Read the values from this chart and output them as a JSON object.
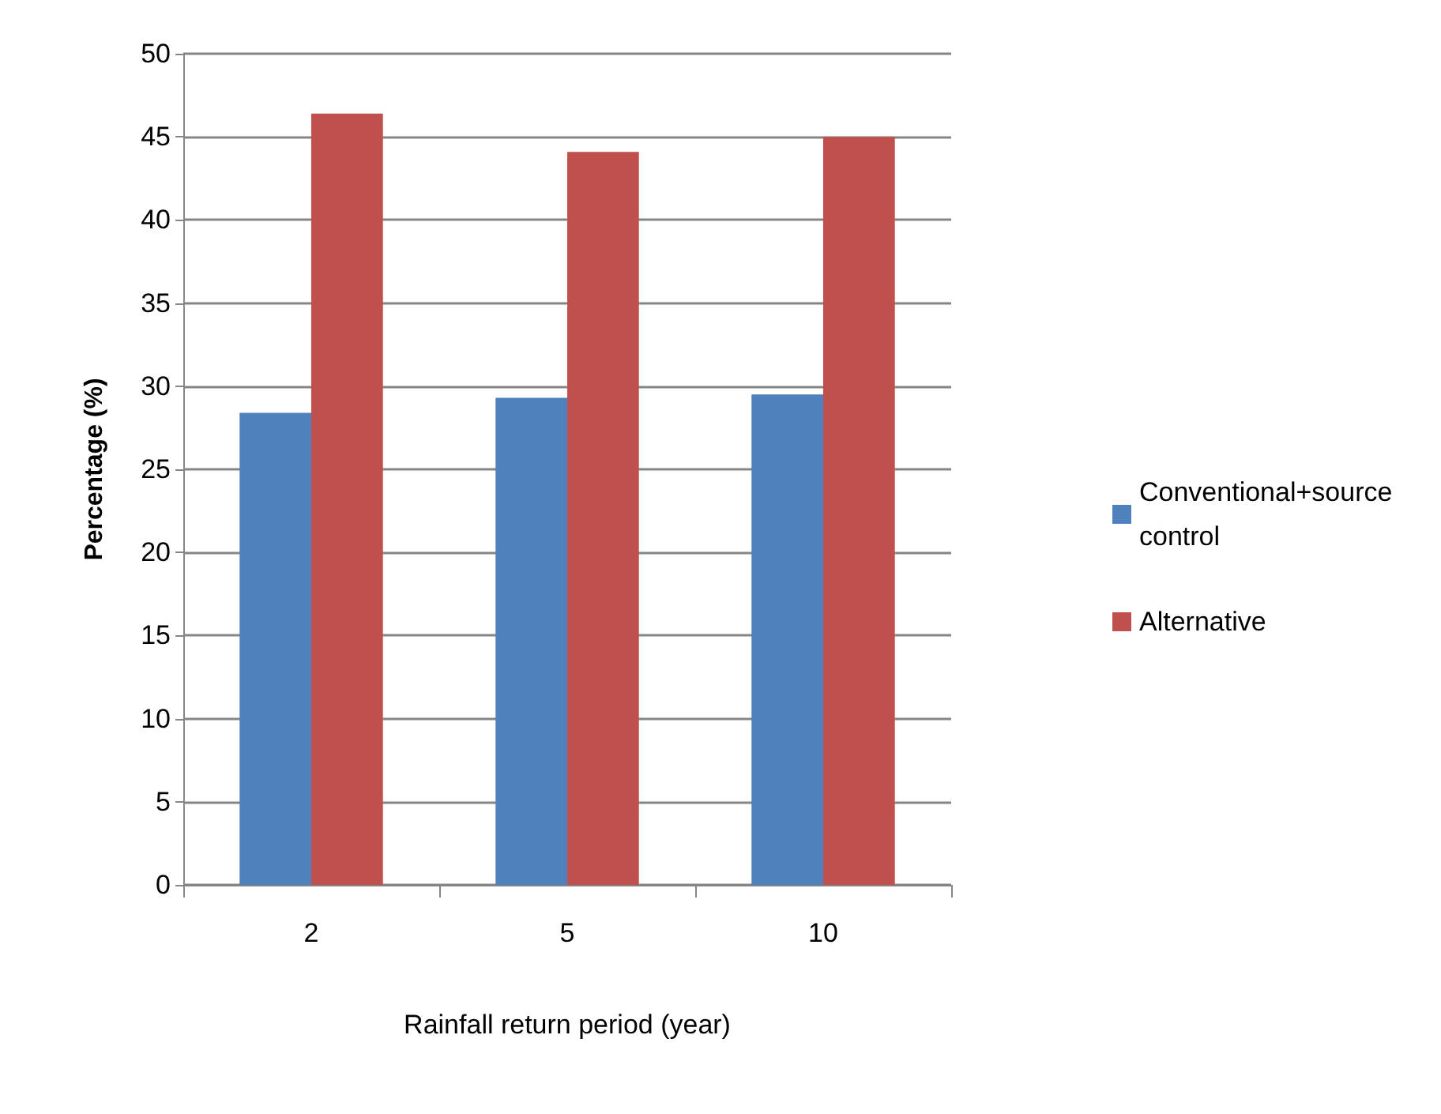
{
  "chart_data": {
    "type": "bar",
    "xlabel": "Rainfall return period (year)",
    "ylabel": "Percentage (%)",
    "categories": [
      "2",
      "5",
      "10"
    ],
    "series": [
      {
        "name": "Conventional+source control",
        "color": "#4f81bd",
        "values": [
          28.4,
          29.3,
          29.5
        ]
      },
      {
        "name": "Alternative",
        "color": "#c0504d",
        "values": [
          46.4,
          44.1,
          45.0
        ]
      }
    ],
    "ylim": [
      0,
      50
    ],
    "yticks": [
      0,
      5,
      10,
      15,
      20,
      25,
      30,
      35,
      40,
      45,
      50
    ],
    "grid": "y",
    "legend": "right"
  }
}
